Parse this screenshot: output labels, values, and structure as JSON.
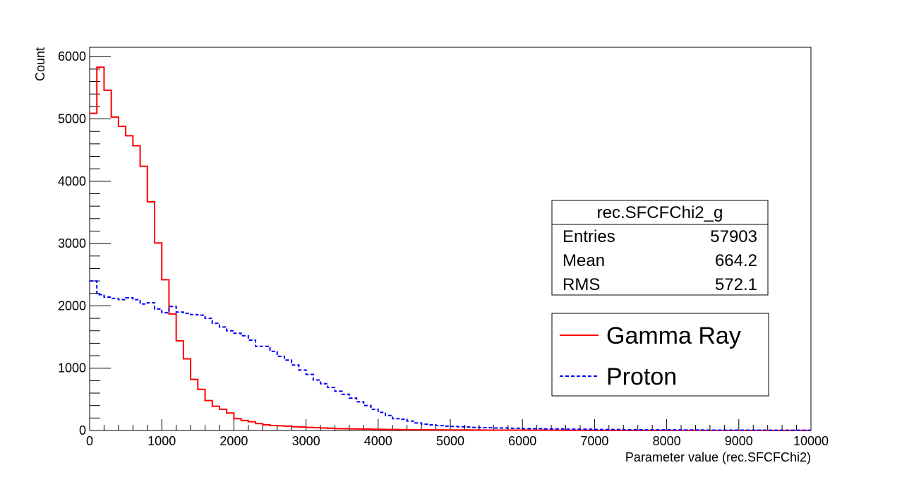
{
  "chart_data": {
    "type": "histogram",
    "xlabel": "Parameter value (rec.SFCFChi2)",
    "ylabel": "Count",
    "xlim": [
      0,
      10000
    ],
    "ylim": [
      0,
      6150
    ],
    "x_ticks": [
      0,
      1000,
      2000,
      3000,
      4000,
      5000,
      6000,
      7000,
      8000,
      9000,
      10000
    ],
    "y_ticks": [
      0,
      1000,
      2000,
      3000,
      4000,
      5000,
      6000
    ],
    "bin_width": 100,
    "grid": false,
    "stats_box": {
      "title": "rec.SFCFChi2_g",
      "rows": [
        {
          "label": "Entries",
          "value": "57903"
        },
        {
          "label": "Mean",
          "value": "664.2"
        },
        {
          "label": "RMS",
          "value": "572.1"
        }
      ]
    },
    "legend_position": "right",
    "series": [
      {
        "name": "Gamma Ray",
        "color": "#ff0000",
        "style": "solid",
        "values": [
          5090,
          5830,
          5460,
          5030,
          4880,
          4730,
          4570,
          4240,
          3670,
          3010,
          2420,
          1870,
          1440,
          1150,
          820,
          660,
          480,
          390,
          340,
          280,
          190,
          160,
          140,
          110,
          90,
          80,
          75,
          70,
          60,
          55,
          50,
          45,
          40,
          35,
          30,
          28,
          26,
          24,
          22,
          20,
          18,
          16,
          15,
          14,
          13,
          12,
          11,
          10,
          10,
          9,
          9,
          8,
          8,
          7,
          7,
          6,
          6,
          5,
          5,
          5,
          5,
          4,
          4,
          4,
          4,
          3,
          3,
          3,
          3,
          3,
          2,
          2,
          2,
          2,
          2,
          2,
          2,
          2,
          1,
          1,
          1,
          1,
          1,
          1,
          1,
          1,
          1,
          1,
          1,
          1,
          1,
          1,
          1,
          1,
          1,
          1,
          1,
          1,
          1,
          1
        ]
      },
      {
        "name": "Proton",
        "color": "#0000ff",
        "style": "dashed",
        "values": [
          2400,
          2180,
          2140,
          2120,
          2100,
          2130,
          2100,
          2030,
          2050,
          1950,
          1890,
          1990,
          1900,
          1880,
          1860,
          1850,
          1800,
          1720,
          1660,
          1600,
          1560,
          1520,
          1450,
          1350,
          1350,
          1270,
          1190,
          1130,
          1050,
          970,
          900,
          810,
          750,
          690,
          630,
          580,
          520,
          460,
          400,
          340,
          290,
          240,
          190,
          180,
          150,
          120,
          100,
          90,
          80,
          70,
          65,
          60,
          55,
          50,
          45,
          45,
          40,
          40,
          35,
          35,
          30,
          30,
          30,
          25,
          25,
          25,
          20,
          20,
          20,
          20,
          15,
          15,
          15,
          15,
          12,
          12,
          12,
          10,
          10,
          10,
          10,
          8,
          8,
          8,
          8,
          6,
          6,
          6,
          6,
          5,
          5,
          5,
          5,
          5,
          4,
          4,
          4,
          4,
          4,
          3
        ]
      }
    ]
  }
}
